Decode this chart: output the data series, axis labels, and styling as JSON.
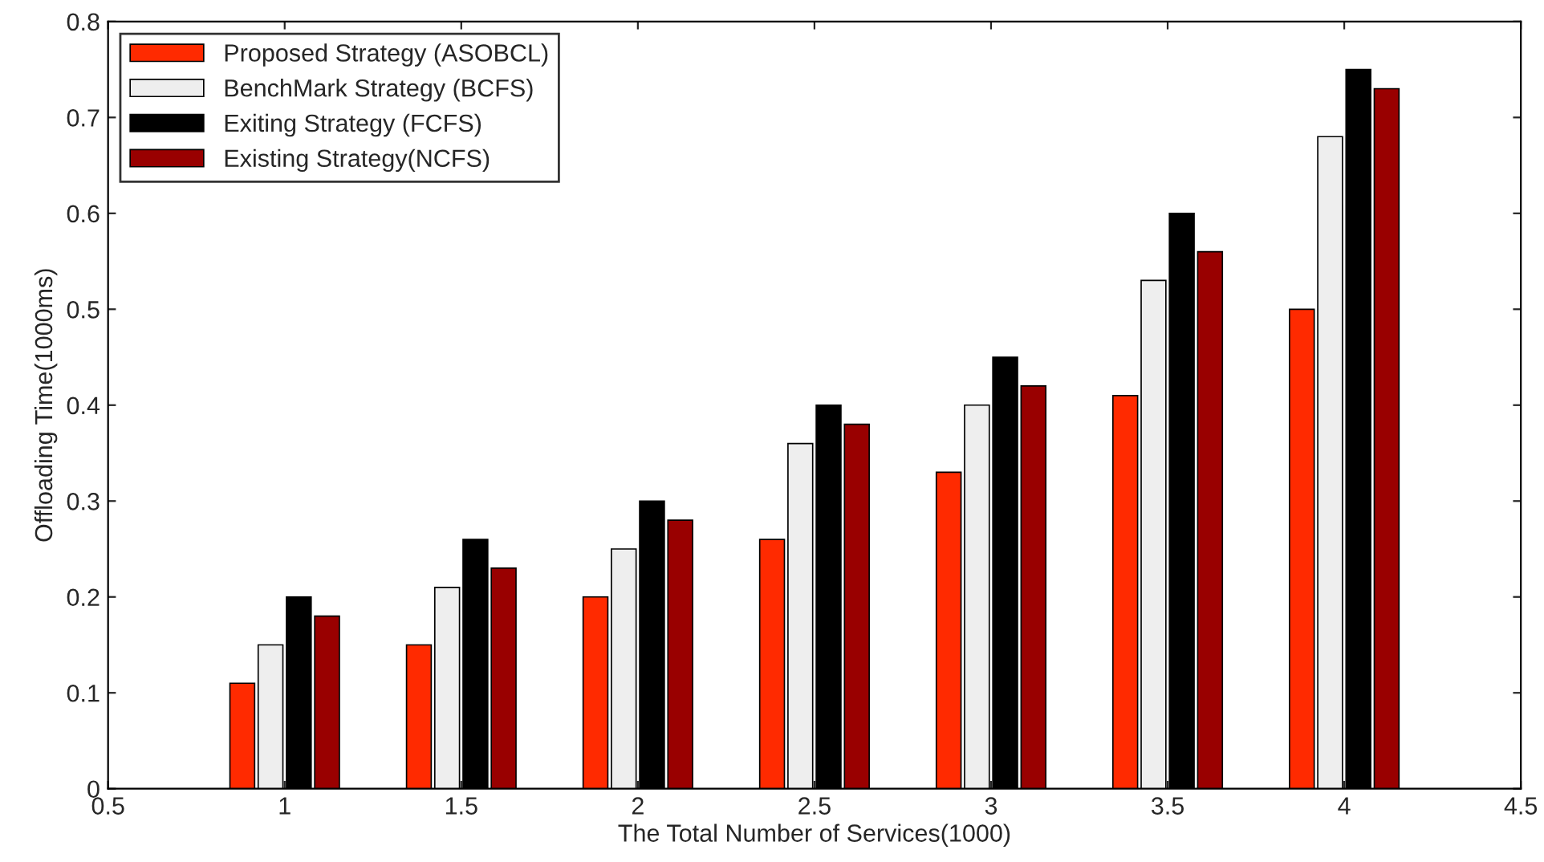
{
  "chart_data": {
    "type": "bar",
    "xlabel": "The Total Number of Services(1000)",
    "ylabel": "Offloading Time(1000ms)",
    "x": [
      1,
      1.5,
      2,
      2.5,
      3,
      3.5,
      4
    ],
    "series": [
      {
        "name": "Proposed Strategy (ASOBCL)",
        "color": "#ff2a00",
        "values": [
          0.11,
          0.15,
          0.2,
          0.26,
          0.33,
          0.41,
          0.5
        ]
      },
      {
        "name": "BenchMark Strategy (BCFS)",
        "color": "#eeeeee",
        "values": [
          0.15,
          0.21,
          0.25,
          0.36,
          0.4,
          0.53,
          0.68
        ]
      },
      {
        "name": "Exiting Strategy (FCFS)",
        "color": "#000000",
        "values": [
          0.2,
          0.26,
          0.3,
          0.4,
          0.45,
          0.6,
          0.75
        ]
      },
      {
        "name": "Existing Strategy(NCFS)",
        "color": "#990000",
        "values": [
          0.18,
          0.23,
          0.28,
          0.38,
          0.42,
          0.56,
          0.73
        ]
      }
    ],
    "xlim": [
      0.5,
      4.5
    ],
    "xticks": [
      0.5,
      1,
      1.5,
      2,
      2.5,
      3,
      3.5,
      4,
      4.5
    ],
    "ylim": [
      0,
      0.8
    ],
    "yticks": [
      0,
      0.1,
      0.2,
      0.3,
      0.4,
      0.5,
      0.6,
      0.7,
      0.8
    ],
    "grid": false,
    "legend": "top left"
  }
}
